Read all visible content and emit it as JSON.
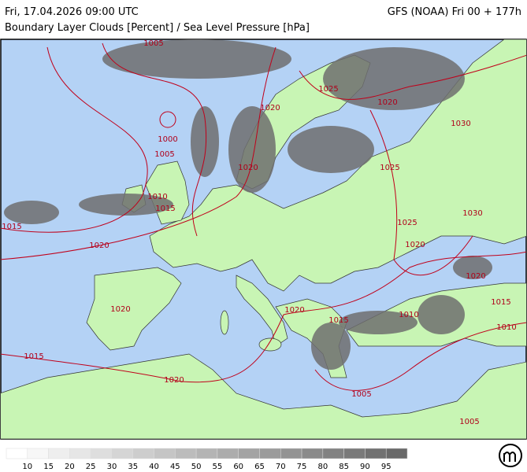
{
  "header": {
    "title": "Fri, 17.04.2026 09:00 UTC",
    "model": "GFS (NOAA) Fri 00 + 177h",
    "subtitle": "Boundary Layer Clouds [Percent] / Sea Level Pressure [hPa]"
  },
  "isobar_labels": [
    "1005",
    "1025",
    "1020",
    "1020",
    "1030",
    "1000",
    "1005",
    "1020",
    "1025",
    "1010",
    "1015",
    "1030",
    "1015",
    "1025",
    "1020",
    "1020",
    "1020",
    "1020",
    "1015",
    "1020",
    "1015",
    "1010",
    "1010",
    "1015",
    "1020",
    "1005",
    "1005"
  ],
  "legend": {
    "values": [
      10,
      15,
      20,
      25,
      30,
      35,
      40,
      45,
      50,
      55,
      60,
      65,
      70,
      75,
      80,
      85,
      90,
      95
    ]
  }
}
